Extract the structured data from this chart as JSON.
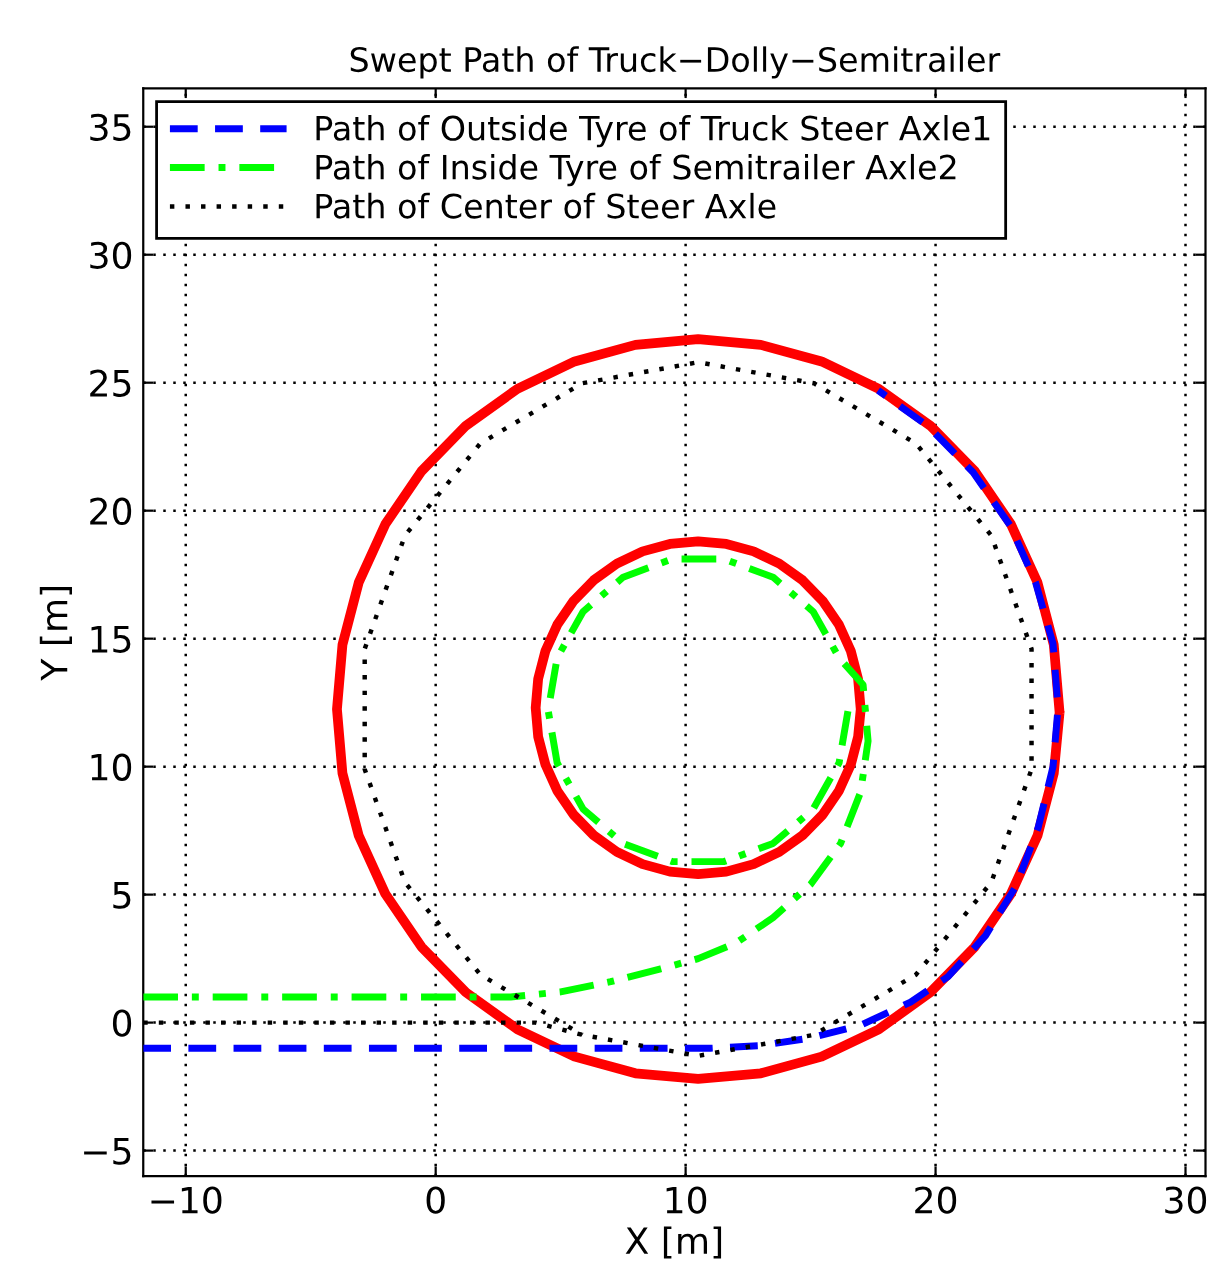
{
  "chart_data": {
    "type": "line",
    "title": "Swept Path of Truck−Dolly−Semitrailer",
    "xlabel": "X [m]",
    "ylabel": "Y [m]",
    "xlim": [
      -11.7,
      30.8
    ],
    "ylim": [
      -6,
      36.5
    ],
    "xticks": [
      {
        "value": -10,
        "label": "−10"
      },
      0,
      10,
      20,
      30
    ],
    "yticks": [
      {
        "value": -5,
        "label": "−5"
      },
      0,
      5,
      10,
      15,
      20,
      25,
      30,
      35
    ],
    "grid": true,
    "legend": "top left",
    "series": [
      {
        "name": "Path of Outside Tyre of Truck Steer Axle1",
        "color": "#0000ff",
        "line_style": "dashed",
        "x": [
          -11.7,
          -4,
          4,
          8,
          11,
          13,
          15,
          17,
          19,
          20.5,
          22,
          23.2,
          24.1,
          24.7,
          24.9,
          24.7,
          24.0,
          23.0,
          21.5,
          19.7,
          17.7
        ],
        "values": [
          -1,
          -1,
          -1,
          -1,
          -1,
          -0.9,
          -0.6,
          -0.1,
          0.8,
          1.8,
          3.4,
          5.3,
          7.6,
          10,
          12.3,
          14.8,
          17.2,
          19.4,
          21.5,
          23.3,
          24.7
        ]
      },
      {
        "name": "Path of Inside Tyre of Semitrailer Axle2",
        "color": "#00ff00",
        "line_style": "dashdot",
        "x": [
          -11.7,
          -4,
          3,
          5,
          7,
          9,
          10.5,
          12,
          13.5,
          15,
          16.2,
          17,
          17.3,
          17.1,
          16.14,
          15.1,
          13.5,
          11.54,
          9.46,
          7.5,
          5.9,
          4.86,
          4.5,
          4.86,
          5.9,
          7.5,
          9.46,
          11.54,
          13.5,
          15.1,
          16.14,
          16.5
        ],
        "values": [
          1,
          1,
          1,
          1.2,
          1.6,
          2.1,
          2.5,
          3.1,
          4.1,
          5.4,
          7,
          9,
          11,
          13.2,
          14.25,
          16.06,
          17.4,
          18.11,
          18.11,
          17.4,
          16.06,
          14.25,
          12.2,
          10.15,
          8.34,
          7.0,
          6.29,
          6.29,
          7.0,
          8.34,
          10.15,
          12.2
        ]
      },
      {
        "name": "Path of Center of Steer Axle",
        "color": "#000000",
        "line_style": "dotted",
        "x": [
          -11.7,
          4,
          5.87,
          10.5,
          15.13,
          19.21,
          22.23,
          23.84,
          23.84,
          22.23,
          19.21,
          15.13,
          10.5,
          5.87,
          1.79,
          -1.23,
          -2.84,
          -2.84,
          -1.23,
          1.79,
          5.87
        ],
        "values": [
          0,
          0,
          -0.48,
          -1.3,
          -0.48,
          1.87,
          5.48,
          9.9,
          14.6,
          19.03,
          22.63,
          24.98,
          25.8,
          24.98,
          22.63,
          19.03,
          14.6,
          9.9,
          5.48,
          1.87,
          -0.48
        ]
      },
      {
        "color": "#ff0000",
        "line_style": "solid",
        "x": [
          24.95,
          24.73,
          24.08,
          23.01,
          21.57,
          19.79,
          17.73,
          15.44,
          13.01,
          10.5,
          7.99,
          5.56,
          3.27,
          1.21,
          -0.57,
          -2.01,
          -3.08,
          -3.73,
          -3.95,
          -3.73,
          -3.08,
          -2.01,
          -0.57,
          1.21,
          3.27,
          5.56,
          7.99,
          10.5,
          13.01,
          15.44,
          17.73,
          19.79,
          21.57,
          23.01,
          24.08,
          24.73,
          24.95
        ],
        "values": [
          12.25,
          14.76,
          17.19,
          19.48,
          21.54,
          23.32,
          24.76,
          25.83,
          26.48,
          26.7,
          26.48,
          25.83,
          24.76,
          23.32,
          21.54,
          19.48,
          17.19,
          14.76,
          12.25,
          9.74,
          7.31,
          5.02,
          2.96,
          1.18,
          -0.26,
          -1.33,
          -1.98,
          -2.2,
          -1.98,
          -1.33,
          -0.26,
          1.18,
          2.96,
          5.02,
          7.31,
          9.74,
          12.0
        ]
      },
      {
        "color": "#ff0000",
        "line_style": "solid",
        "x": [
          17.0,
          16.9,
          16.61,
          16.13,
          15.48,
          14.68,
          13.75,
          12.72,
          11.63,
          10.5,
          9.37,
          8.28,
          7.25,
          6.32,
          5.52,
          4.87,
          4.39,
          4.1,
          4.0,
          4.1,
          4.39,
          4.87,
          5.52,
          6.32,
          7.25,
          8.28,
          9.37,
          10.5,
          11.63,
          12.72,
          13.75,
          14.68,
          15.48,
          16.13,
          16.61,
          16.9,
          17.0
        ],
        "values": [
          12.3,
          13.43,
          14.52,
          15.55,
          16.48,
          17.28,
          17.93,
          18.41,
          18.7,
          18.8,
          18.7,
          18.41,
          17.93,
          17.28,
          16.48,
          15.55,
          14.52,
          13.43,
          12.3,
          11.17,
          10.08,
          9.05,
          8.12,
          7.32,
          6.67,
          6.19,
          5.9,
          5.8,
          5.9,
          6.19,
          6.67,
          7.32,
          8.12,
          9.05,
          10.08,
          11.17,
          12.19
        ]
      }
    ]
  }
}
